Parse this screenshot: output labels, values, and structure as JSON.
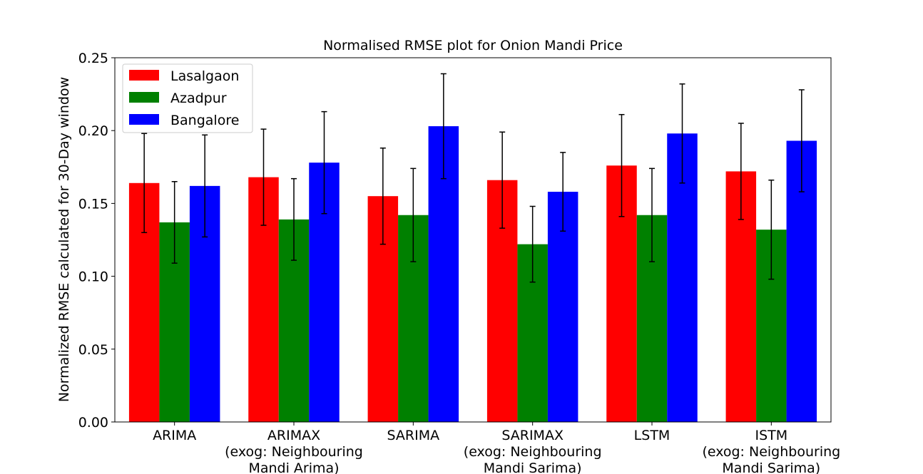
{
  "chart_data": {
    "type": "bar",
    "title": "Normalised RMSE plot for Onion Mandi Price",
    "xlabel": "",
    "ylabel": "Normalized RMSE calculated for 30-Day window",
    "ylim": [
      0,
      0.25
    ],
    "yticks": [
      "0.00",
      "0.05",
      "0.10",
      "0.15",
      "0.20",
      "0.25"
    ],
    "grid": false,
    "legend_position": "top-left",
    "categories": [
      [
        "ARIMA"
      ],
      [
        "ARIMAX",
        "(exog: Neighbouring",
        "Mandi Arima)"
      ],
      [
        "SARIMA"
      ],
      [
        "SARIMAX",
        "(exog: Neighbouring",
        "Mandi Sarima)"
      ],
      [
        "LSTM"
      ],
      [
        "ISTM",
        "(exog: Neighbouring",
        "Mandi Sarima)"
      ]
    ],
    "series": [
      {
        "name": "Lasalgaon",
        "color": "#ff0000",
        "values": [
          0.164,
          0.168,
          0.155,
          0.166,
          0.176,
          0.172
        ],
        "errors": [
          0.034,
          0.033,
          0.033,
          0.033,
          0.035,
          0.033
        ]
      },
      {
        "name": "Azadpur",
        "color": "#008000",
        "values": [
          0.137,
          0.139,
          0.142,
          0.122,
          0.142,
          0.132
        ],
        "errors": [
          0.028,
          0.028,
          0.032,
          0.026,
          0.032,
          0.034
        ]
      },
      {
        "name": "Bangalore",
        "color": "#0000ff",
        "values": [
          0.162,
          0.178,
          0.203,
          0.158,
          0.198,
          0.193
        ],
        "errors": [
          0.035,
          0.035,
          0.036,
          0.027,
          0.034,
          0.035
        ]
      }
    ]
  }
}
